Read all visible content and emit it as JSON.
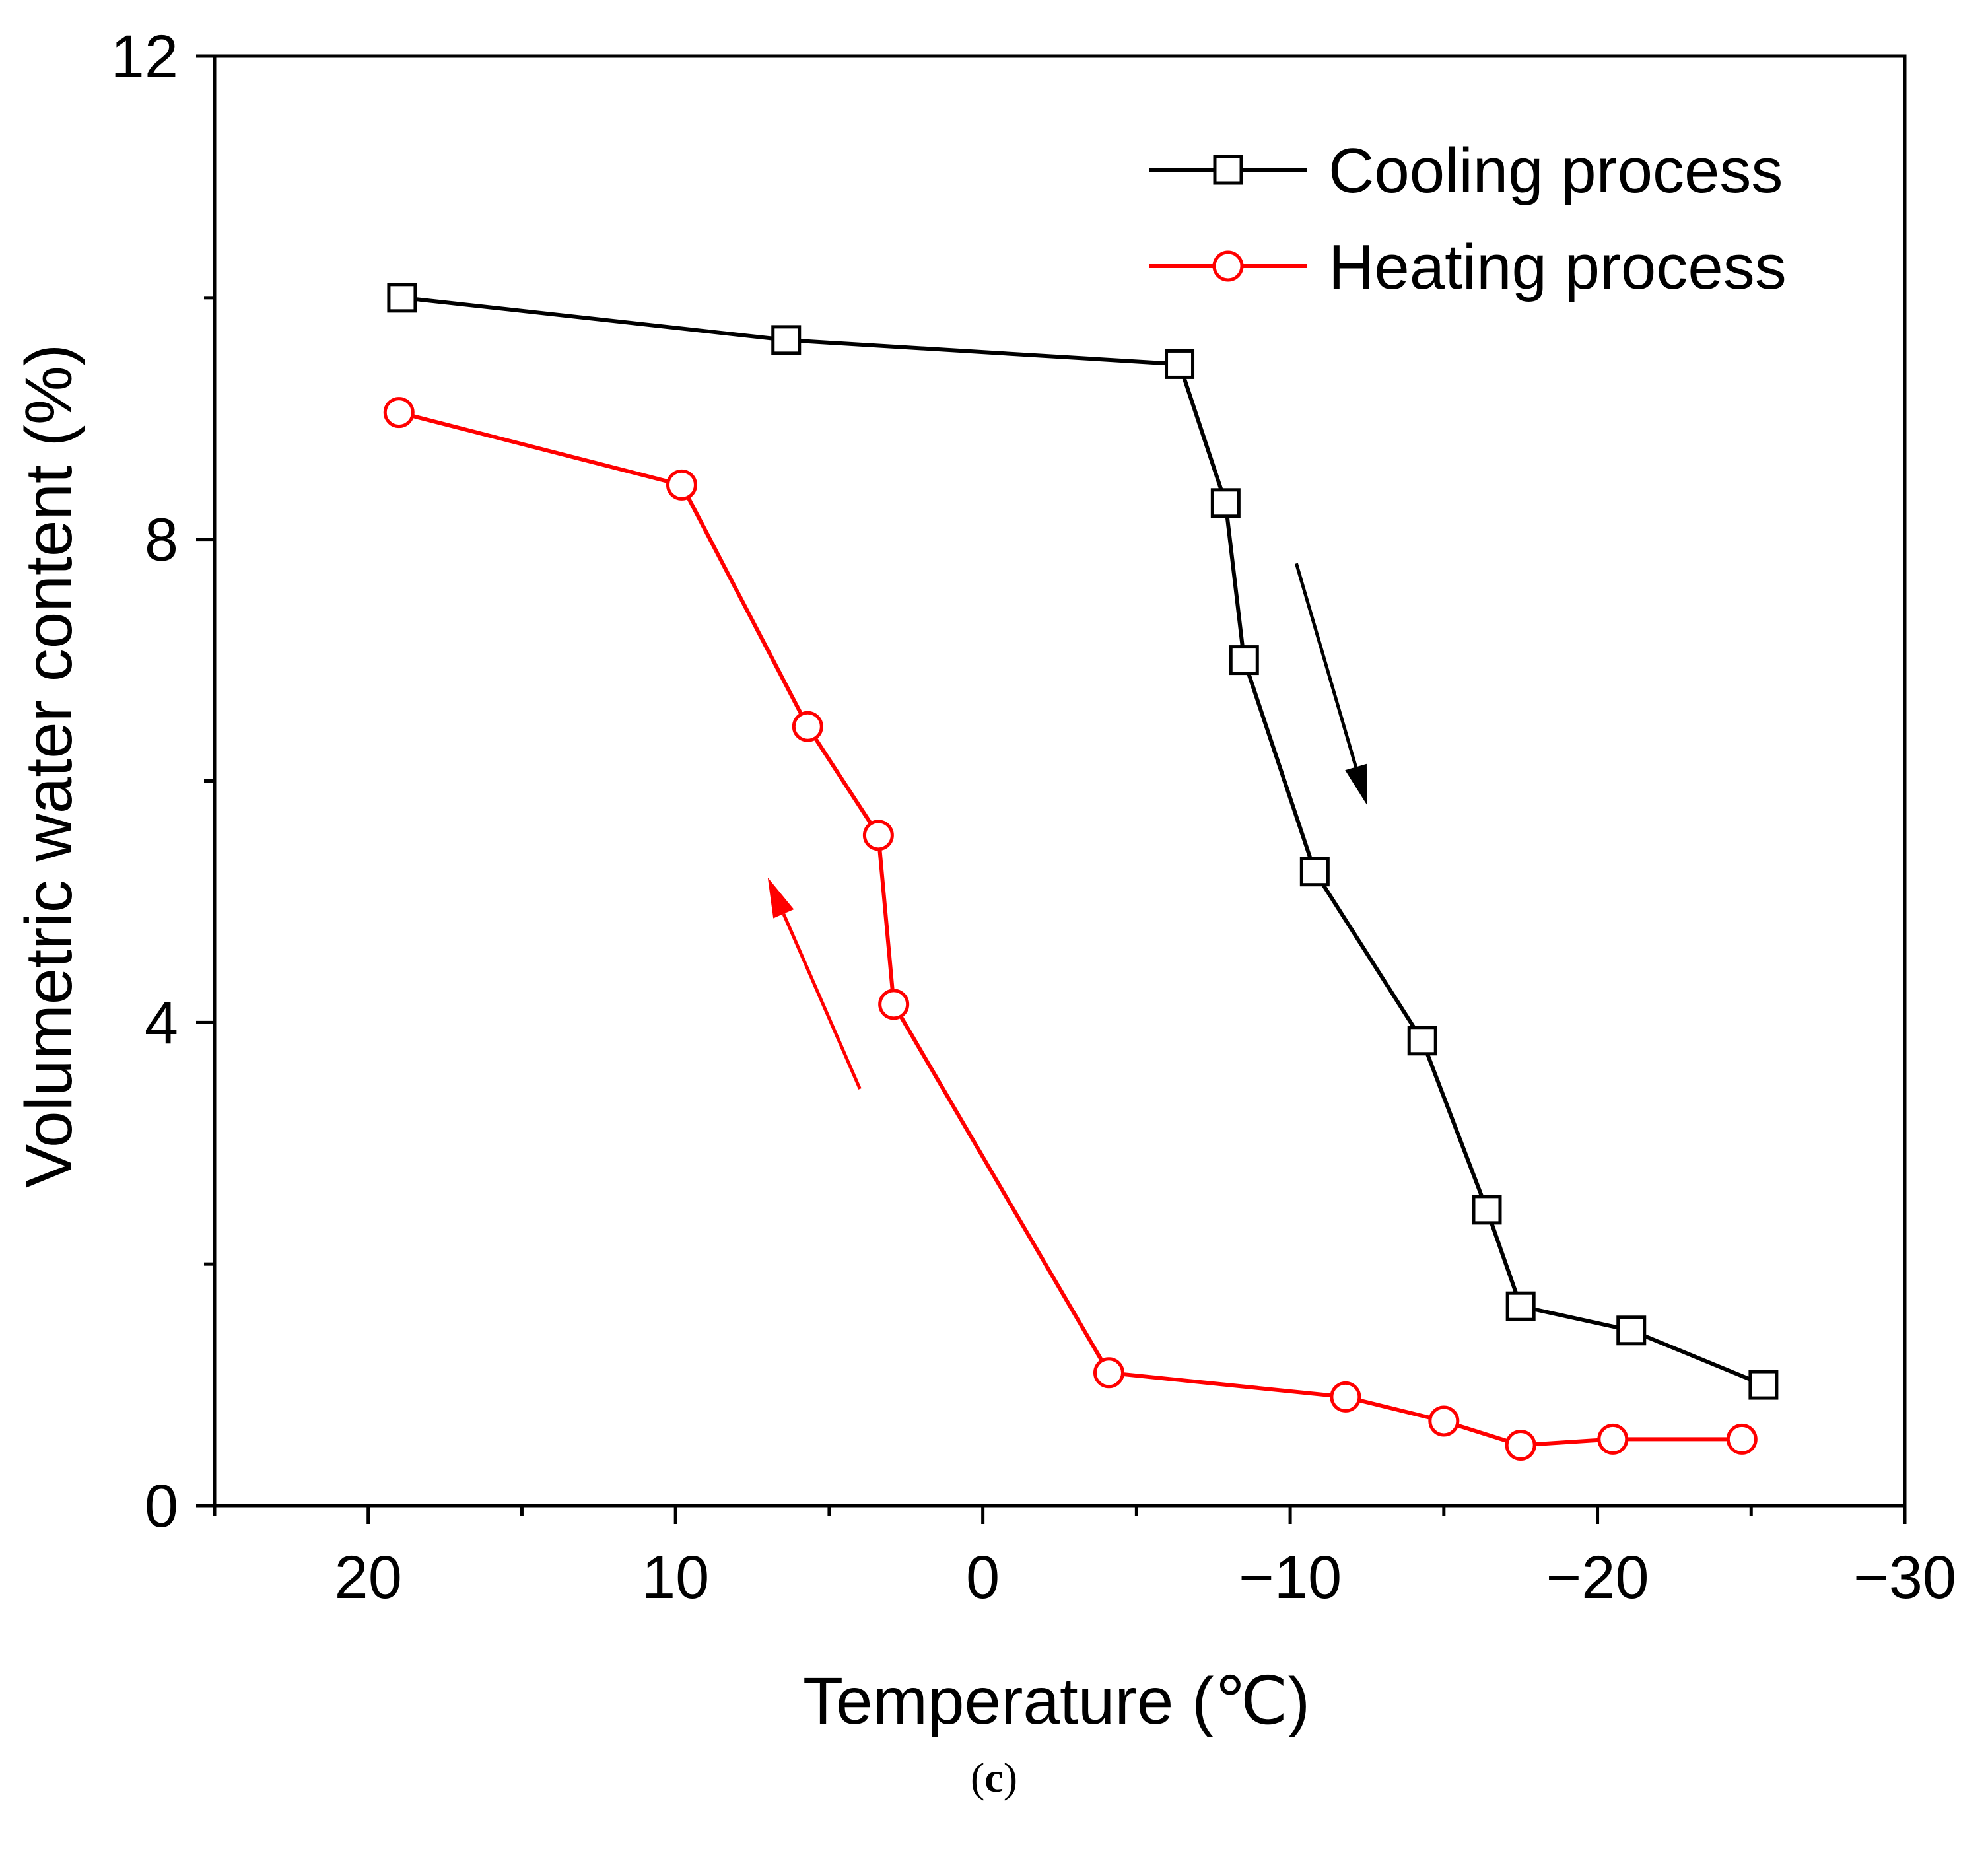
{
  "chart_data": {
    "type": "line",
    "title": "",
    "xlabel": "Temperature (℃)",
    "ylabel": "Volumetric water content (%)",
    "xlim": [
      25,
      -30
    ],
    "ylim": [
      0,
      12
    ],
    "x_ticks": [
      20,
      10,
      0,
      -10,
      -20,
      -30
    ],
    "x_tick_labels": [
      "20",
      "10",
      "0",
      "−10",
      "−20",
      "−30"
    ],
    "y_ticks": [
      0,
      4,
      8,
      12
    ],
    "y_tick_labels": [
      "0",
      "4",
      "8",
      "12"
    ],
    "legend_position": "top-right",
    "series": [
      {
        "name": "Cooling process",
        "color": "#000000",
        "marker": "square",
        "x": [
          18.9,
          6.4,
          -6.4,
          -7.9,
          -8.5,
          -10.8,
          -14.3,
          -16.4,
          -17.5,
          -21.1,
          -25.4
        ],
        "y": [
          10.0,
          9.65,
          9.45,
          8.3,
          7.0,
          5.25,
          3.85,
          2.45,
          1.65,
          1.45,
          1.0
        ]
      },
      {
        "name": "Heating process",
        "color": "#ff0000",
        "marker": "circle",
        "x": [
          19.0,
          9.8,
          5.7,
          3.4,
          2.9,
          -4.1,
          -11.8,
          -15.0,
          -17.5,
          -20.5,
          -24.7
        ],
        "y": [
          9.05,
          8.45,
          6.45,
          5.55,
          4.15,
          1.1,
          0.9,
          0.7,
          0.5,
          0.55,
          0.55
        ]
      }
    ],
    "annotations": [
      {
        "type": "arrow",
        "color": "#000000",
        "from": [
          -10.2,
          7.8
        ],
        "to": [
          -12.5,
          5.8
        ]
      },
      {
        "type": "arrow",
        "color": "#ff0000",
        "from": [
          4.0,
          3.45
        ],
        "to": [
          7.0,
          5.2
        ]
      }
    ]
  },
  "caption": {
    "open": "(",
    "label": "c",
    "close": ")"
  }
}
